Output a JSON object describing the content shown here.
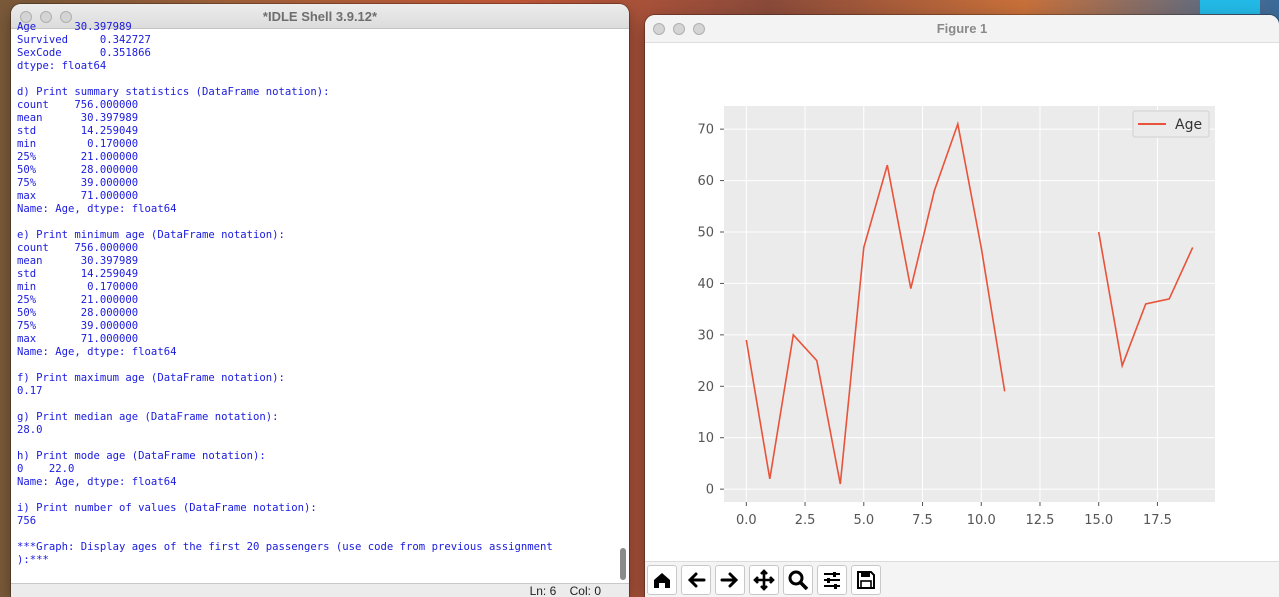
{
  "idle": {
    "title": "*IDLE Shell 3.9.12*",
    "lines": [
      "Age      30.397989",
      "Survived     0.342727",
      "SexCode      0.351866",
      "dtype: float64",
      "",
      "d) Print summary statistics (DataFrame notation):",
      "count    756.000000",
      "mean      30.397989",
      "std       14.259049",
      "min        0.170000",
      "25%       21.000000",
      "50%       28.000000",
      "75%       39.000000",
      "max       71.000000",
      "Name: Age, dtype: float64",
      "",
      "e) Print minimum age (DataFrame notation):",
      "count    756.000000",
      "mean      30.397989",
      "std       14.259049",
      "min        0.170000",
      "25%       21.000000",
      "50%       28.000000",
      "75%       39.000000",
      "max       71.000000",
      "Name: Age, dtype: float64",
      "",
      "f) Print maximum age (DataFrame notation):",
      "0.17",
      "",
      "g) Print median age (DataFrame notation):",
      "28.0",
      "",
      "h) Print mode age (DataFrame notation):",
      "0    22.0",
      "Name: Age, dtype: float64",
      "",
      "i) Print number of values (DataFrame notation):",
      "756",
      "",
      "***Graph: Display ages of the first 20 passengers (use code from previous assignment",
      "):***"
    ],
    "status": {
      "ln_label": "Ln: 6",
      "col_label": "Col: 0"
    }
  },
  "figure": {
    "title": "Figure 1",
    "toolbar": [
      {
        "name": "home-icon",
        "label": "Home"
      },
      {
        "name": "back-arrow-icon",
        "label": "Back"
      },
      {
        "name": "forward-arrow-icon",
        "label": "Forward"
      },
      {
        "name": "pan-icon",
        "label": "Pan"
      },
      {
        "name": "zoom-icon",
        "label": "Zoom"
      },
      {
        "name": "configure-icon",
        "label": "Configure subplots"
      },
      {
        "name": "save-icon",
        "label": "Save"
      }
    ]
  },
  "chart_data": {
    "type": "line",
    "series": [
      {
        "name": "Age",
        "color": "#e8533a",
        "x": [
          0,
          1,
          2,
          3,
          4,
          5,
          6,
          7,
          8,
          9,
          10,
          11,
          12,
          13,
          14,
          15,
          16,
          17,
          18,
          19
        ],
        "values": [
          29,
          2,
          30,
          25,
          1,
          47,
          63,
          39,
          58,
          71,
          47,
          19,
          null,
          null,
          null,
          50,
          24,
          36,
          37,
          47
        ]
      }
    ],
    "xlim": [
      -0.95,
      19.95
    ],
    "ylim": [
      -2.5,
      74.5
    ],
    "xticks": [
      0.0,
      2.5,
      5.0,
      7.5,
      10.0,
      12.5,
      15.0,
      17.5
    ],
    "xtick_labels": [
      "0.0",
      "2.5",
      "5.0",
      "7.5",
      "10.0",
      "12.5",
      "15.0",
      "17.5"
    ],
    "yticks": [
      0,
      10,
      20,
      30,
      40,
      50,
      60,
      70
    ],
    "ytick_labels": [
      "0",
      "10",
      "20",
      "30",
      "40",
      "50",
      "60",
      "70"
    ],
    "grid": true,
    "legend": "top-right",
    "background": "#ebebeb"
  }
}
